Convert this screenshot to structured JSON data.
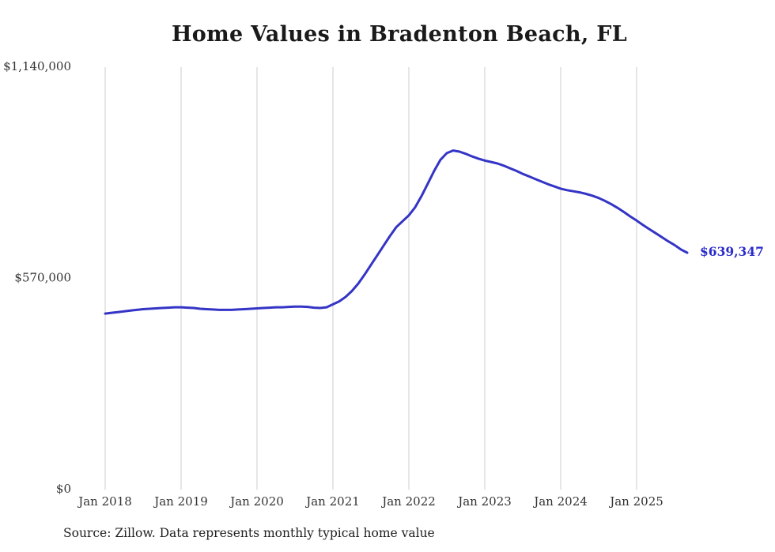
{
  "title": "Home Values in Bradenton Beach, FL",
  "source_note": "Source: Zillow. Data represents monthly typical home value",
  "chart_data": {
    "type": "line",
    "title": "Home Values in Bradenton Beach, FL",
    "xlabel": "",
    "ylabel": "",
    "ylim": [
      0,
      1140000
    ],
    "grid": "vertical-only",
    "legend": "none",
    "line_color": "#3434c6",
    "label_color": "#2b2bcc",
    "axis_text_color": "#333333",
    "gridline_color": "#cccccc",
    "x_start": "Jan 2018",
    "x_interval": "monthly",
    "x_ticks": [
      {
        "label": "Jan 2018",
        "month_index": 0
      },
      {
        "label": "Jan 2019",
        "month_index": 12
      },
      {
        "label": "Jan 2020",
        "month_index": 24
      },
      {
        "label": "Jan 2021",
        "month_index": 36
      },
      {
        "label": "Jan 2022",
        "month_index": 48
      },
      {
        "label": "Jan 2023",
        "month_index": 60
      },
      {
        "label": "Jan 2024",
        "month_index": 72
      },
      {
        "label": "Jan 2025",
        "month_index": 84
      }
    ],
    "y_ticks": [
      {
        "label": "$0",
        "value": 0
      },
      {
        "label": "$570,000",
        "value": 570000
      },
      {
        "label": "$1,140,000",
        "value": 1140000
      }
    ],
    "end_label": "$639,347",
    "end_value": 639347,
    "series": [
      {
        "name": "Monthly typical home value (USD)",
        "values": [
          475000,
          477000,
          479000,
          481000,
          483000,
          485000,
          487000,
          488000,
          489000,
          490000,
          491000,
          492000,
          492000,
          491000,
          490000,
          488000,
          487000,
          486000,
          485000,
          485000,
          485000,
          486000,
          487000,
          488000,
          489000,
          490000,
          491000,
          492000,
          492000,
          493000,
          494000,
          494000,
          493000,
          491000,
          490000,
          492000,
          500000,
          508000,
          520000,
          536000,
          556000,
          580000,
          606000,
          632000,
          658000,
          684000,
          708000,
          724000,
          740000,
          762000,
          792000,
          826000,
          860000,
          890000,
          908000,
          915000,
          912000,
          906000,
          899000,
          893000,
          888000,
          884000,
          880000,
          874000,
          867000,
          860000,
          852000,
          845000,
          838000,
          831000,
          824000,
          818000,
          812000,
          808000,
          805000,
          802000,
          798000,
          793000,
          787000,
          779000,
          770000,
          760000,
          749000,
          737000,
          726000,
          714000,
          703000,
          692000,
          681000,
          670000,
          660000,
          648000,
          639347
        ]
      }
    ]
  }
}
